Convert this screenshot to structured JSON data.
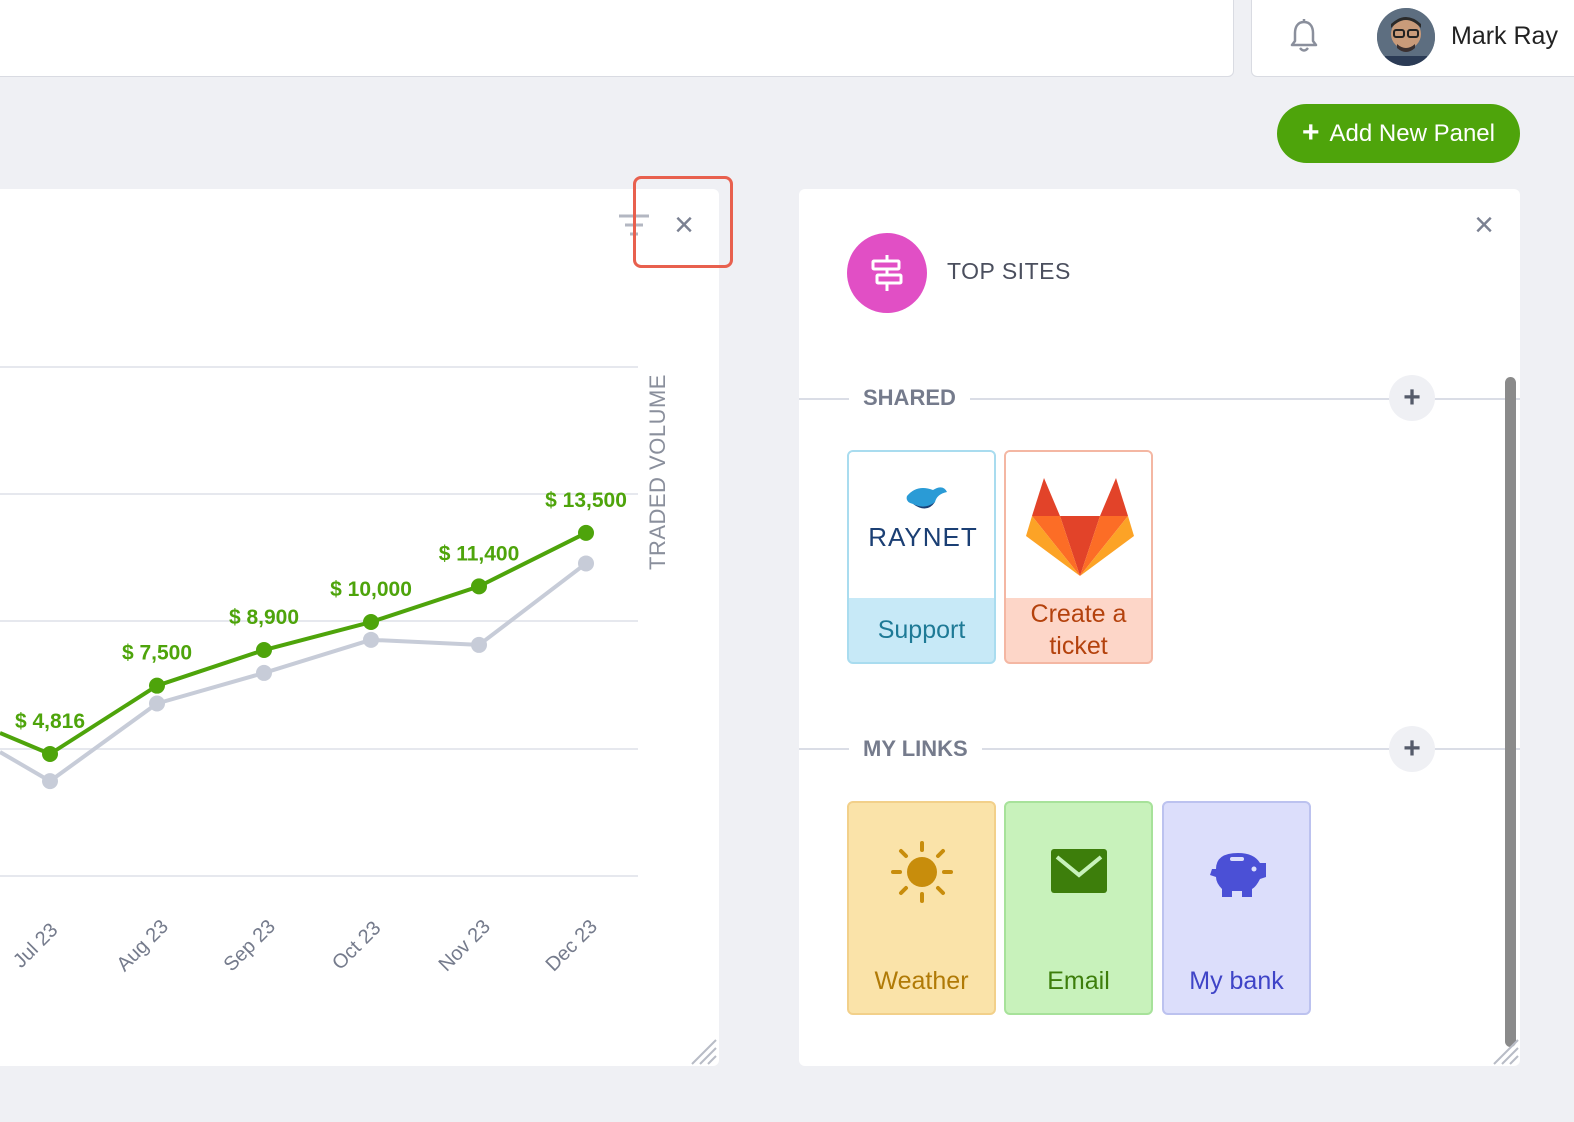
{
  "header": {
    "user_name": "Mark Ray"
  },
  "toolbar": {
    "add_panel_label": "Add New Panel"
  },
  "chart_panel": {
    "close_symbol": "×"
  },
  "chart_data": {
    "type": "line",
    "ylabel": "TRADED VOLUME",
    "categories": [
      "Jul 23",
      "Aug 23",
      "Sep 23",
      "Oct 23",
      "Nov 23",
      "Dec 23"
    ],
    "series": [
      {
        "values": [
          4816,
          7500,
          8900,
          10000,
          11400,
          13500
        ],
        "color": "#4ea40b",
        "value_labels": [
          "$ 4,816",
          "$ 7,500",
          "$ 8,900",
          "$ 10,000",
          "$ 11,400",
          "$ 13,500"
        ]
      },
      {
        "values": [
          3750,
          6800,
          8000,
          9300,
          9100,
          12300
        ],
        "color": "#c7ccd8"
      }
    ],
    "grid": true
  },
  "top_sites": {
    "title": "TOP SITES",
    "close_symbol": "×",
    "shared": {
      "label": "SHARED",
      "add_symbol": "+",
      "tiles": [
        {
          "label": "Support",
          "logo_text": "RAYNET",
          "icon": "raynet-logo"
        },
        {
          "label_line1": "Create a",
          "label_line2": "ticket",
          "icon": "gitlab-logo"
        }
      ]
    },
    "my_links": {
      "label": "MY LINKS",
      "add_symbol": "+",
      "tiles": [
        {
          "label": "Weather",
          "icon": "sun-icon"
        },
        {
          "label": "Email",
          "icon": "envelope-icon"
        },
        {
          "label": "My bank",
          "icon": "piggy-bank-icon"
        }
      ]
    }
  },
  "colors": {
    "accent_green": "#4ea40b",
    "sites_pink": "#e14fc5"
  }
}
